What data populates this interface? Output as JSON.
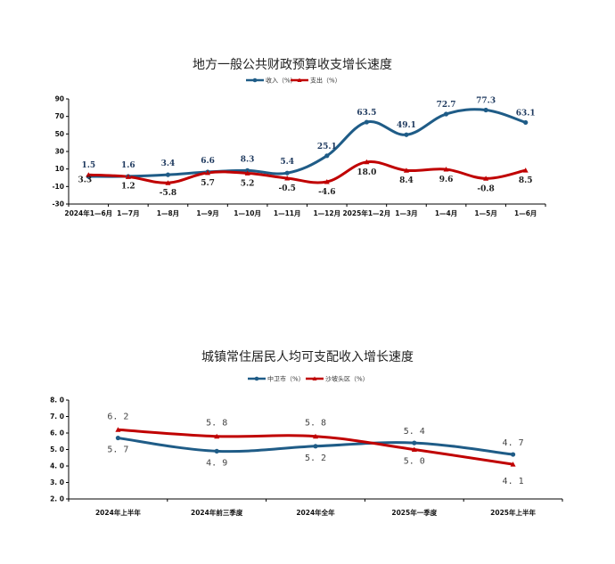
{
  "chart_data": [
    {
      "type": "line",
      "title": "地方一般公共财政预算收支增长速度",
      "categories": [
        "2024年1—6月",
        "1—7月",
        "1—8月",
        "1—9月",
        "1—10月",
        "1—11月",
        "1—12月",
        "2025年1—2月",
        "1—3月",
        "1—4月",
        "1—5月",
        "1—6月"
      ],
      "ylim": [
        -30,
        90
      ],
      "yticks": [
        "90",
        "70",
        "50",
        "30",
        "10",
        "-10",
        "-30"
      ],
      "legend_position": "top-center",
      "series": [
        {
          "name": "收入（%）",
          "color": "#1f5c87",
          "marker": "circle",
          "values": [
            1.5,
            1.6,
            3.4,
            6.6,
            8.3,
            5.4,
            25.1,
            63.5,
            49.1,
            72.7,
            77.3,
            63.1
          ],
          "labels": [
            "1.5",
            "1.6",
            "3.4",
            "6.6",
            "8.3",
            "5.4",
            "25.1",
            "63.5",
            "49.1",
            "72.7",
            "77.3",
            "63.1"
          ]
        },
        {
          "name": "支出（%）",
          "color": "#c00000",
          "marker": "triangle",
          "values": [
            3.3,
            1.2,
            -5.8,
            5.7,
            5.2,
            -0.5,
            -4.6,
            18.0,
            8.4,
            9.6,
            -0.8,
            8.5
          ],
          "labels": [
            "3.3",
            "1.2",
            "-5.8",
            "5.7",
            "5.2",
            "-0.5",
            "-4.6",
            "18.0",
            "8.4",
            "9.6",
            "-0.8",
            "8.5"
          ]
        }
      ]
    },
    {
      "type": "line",
      "title": "城镇常住居民人均可支配收入增长速度",
      "categories": [
        "2024年上半年",
        "2024年前三季度",
        "2024年全年",
        "2025年一季度",
        "2025年上半年"
      ],
      "ylim": [
        2.0,
        8.0
      ],
      "yticks": [
        "8. 0",
        "7. 0",
        "6. 0",
        "5. 0",
        "4. 0",
        "3. 0",
        "2. 0"
      ],
      "legend_position": "top-center",
      "series": [
        {
          "name": "中卫市（%）",
          "color": "#1f5c87",
          "marker": "circle",
          "values": [
            5.7,
            4.9,
            5.2,
            5.4,
            4.7
          ],
          "labels": [
            "5. 7",
            "4. 9",
            "5. 2",
            "5. 4",
            "4. 7"
          ]
        },
        {
          "name": "沙坡头区（%）",
          "color": "#c00000",
          "marker": "triangle",
          "values": [
            6.2,
            5.8,
            5.8,
            5.0,
            4.1
          ],
          "labels": [
            "6. 2",
            "5. 8",
            "5. 8",
            "5. 0",
            "4. 1"
          ]
        }
      ]
    }
  ]
}
